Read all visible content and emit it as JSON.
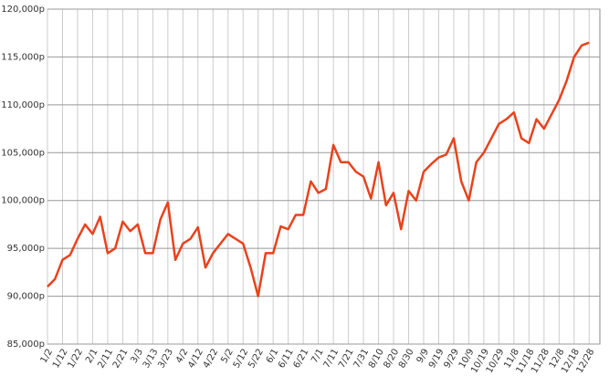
{
  "chart_data": {
    "type": "line",
    "categories": [
      "1/2",
      null,
      "1/12",
      null,
      "1/22",
      null,
      "2/1",
      null,
      "2/11",
      null,
      "2/21",
      null,
      "3/3",
      null,
      "3/13",
      null,
      "3/23",
      null,
      "4/2",
      null,
      "4/12",
      null,
      "4/22",
      null,
      "5/2",
      null,
      "5/12",
      null,
      "5/22",
      null,
      "6/1",
      null,
      "6/11",
      null,
      "6/21",
      null,
      "7/1",
      null,
      "7/11",
      null,
      "7/21",
      null,
      "7/31",
      null,
      "8/10",
      null,
      "8/20",
      null,
      "8/30",
      null,
      "9/9",
      null,
      "9/19",
      null,
      "9/29",
      null,
      "10/9",
      null,
      "10/19",
      null,
      "10/29",
      null,
      "11/8",
      null,
      "11/18",
      null,
      "11/28",
      null,
      "12/8",
      null,
      "12/18",
      null,
      "12/28"
    ],
    "values": [
      91000,
      91800,
      93800,
      94300,
      96000,
      97500,
      96500,
      98300,
      94500,
      95000,
      97800,
      96800,
      97500,
      94500,
      94500,
      98000,
      99800,
      93800,
      95500,
      96000,
      97200,
      93000,
      94500,
      95500,
      96500,
      96000,
      95500,
      93000,
      90000,
      94500,
      94500,
      97300,
      97000,
      98500,
      98500,
      102000,
      100800,
      101200,
      105800,
      104000,
      104000,
      103000,
      102500,
      100200,
      104000,
      99500,
      100800,
      97000,
      101000,
      100000,
      103000,
      103800,
      104500,
      104800,
      106500,
      102000,
      100000,
      104000,
      105000,
      106500,
      108000,
      108500,
      109200,
      106500,
      106000,
      108500,
      107500,
      109000,
      110500,
      112500,
      115000,
      116200,
      116500
    ],
    "color": "#e8421c",
    "ylim": [
      85000,
      120000
    ],
    "yticks": [
      {
        "value": 85000,
        "label": "85,000p"
      },
      {
        "value": 90000,
        "label": "90,000p"
      },
      {
        "value": 95000,
        "label": "95,000p"
      },
      {
        "value": 100000,
        "label": "100,000p"
      },
      {
        "value": 105000,
        "label": "105,000p"
      },
      {
        "value": 110000,
        "label": "110,000p"
      },
      {
        "value": 115000,
        "label": "115,000p"
      },
      {
        "value": 120000,
        "label": "120,000p"
      }
    ],
    "grid": true
  }
}
